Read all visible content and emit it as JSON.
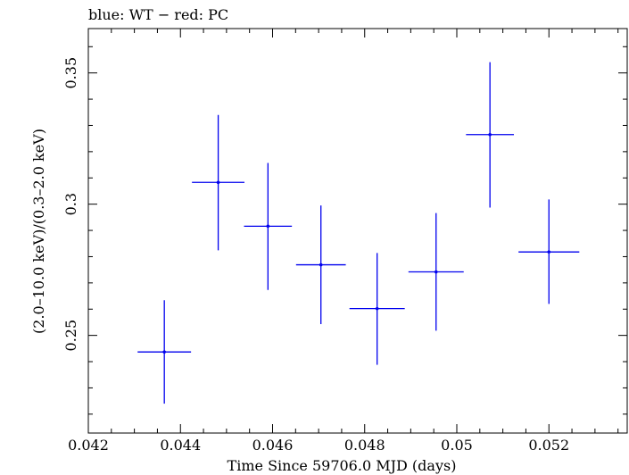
{
  "chart_data": {
    "type": "scatter",
    "title": "blue: WT − red: PC",
    "xlabel": "Time Since 59706.0 MJD (days)",
    "ylabel": "(2.0–10.0 keV)/(0.3–2.0 keV)",
    "xlim": [
      0.042,
      0.0537
    ],
    "ylim": [
      0.2128,
      0.3669
    ],
    "x_ticks": [
      0.042,
      0.044,
      0.046,
      0.048,
      0.05,
      0.052
    ],
    "x_tick_labels": [
      "0.042",
      "0.044",
      "0.046",
      "0.048",
      "0.05",
      "0.052"
    ],
    "y_ticks": [
      0.25,
      0.3,
      0.35
    ],
    "y_tick_labels": [
      "0.25",
      "0.3",
      "0.35"
    ],
    "grid": false,
    "series": [
      {
        "color": "#0000ee",
        "points": [
          {
            "x": 0.04365,
            "y": 0.2437,
            "xerr": 0.00058,
            "yerr_low": 0.0197,
            "yerr_high": 0.0197
          },
          {
            "x": 0.04482,
            "y": 0.3083,
            "xerr": 0.00057,
            "yerr_low": 0.0259,
            "yerr_high": 0.0257
          },
          {
            "x": 0.0459,
            "y": 0.2916,
            "xerr": 0.00052,
            "yerr_low": 0.0243,
            "yerr_high": 0.0241
          },
          {
            "x": 0.04705,
            "y": 0.2769,
            "xerr": 0.00054,
            "yerr_low": 0.0226,
            "yerr_high": 0.0226
          },
          {
            "x": 0.04827,
            "y": 0.2602,
            "xerr": 0.0006,
            "yerr_low": 0.0214,
            "yerr_high": 0.0212
          },
          {
            "x": 0.04955,
            "y": 0.2742,
            "xerr": 0.0006,
            "yerr_low": 0.0224,
            "yerr_high": 0.0224
          },
          {
            "x": 0.05072,
            "y": 0.3265,
            "xerr": 0.00052,
            "yerr_low": 0.0278,
            "yerr_high": 0.0276
          },
          {
            "x": 0.052,
            "y": 0.2818,
            "xerr": 0.00066,
            "yerr_low": 0.0198,
            "yerr_high": 0.02
          }
        ]
      }
    ]
  }
}
